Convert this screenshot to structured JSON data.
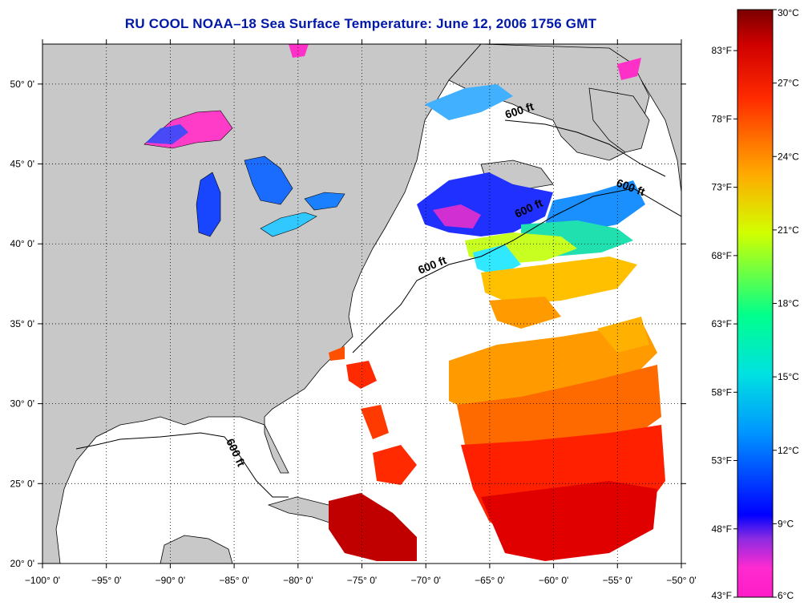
{
  "title": "RU COOL  NOAA–18  Sea Surface Temperature:  June 12, 2006 1756 GMT",
  "map": {
    "lon_range": [
      -100,
      -50
    ],
    "lat_range": [
      20,
      52.5
    ],
    "x_ticks": [
      "−100° 0'",
      "−95° 0'",
      "−90° 0'",
      "−85° 0'",
      "−80° 0'",
      "−75° 0'",
      "−70° 0'",
      "−65° 0'",
      "−60° 0'",
      "−55° 0'",
      "−50° 0'"
    ],
    "y_ticks": [
      "50° 0'",
      "45° 0'",
      "40° 0'",
      "35° 0'",
      "30° 0'",
      "25° 0'",
      "20° 0'"
    ],
    "grid": "dotted",
    "land_color": "#c8c8c8",
    "ocean_color": "#ffffff",
    "contour_labels": [
      "600 ft",
      "600 ft",
      "600 ft",
      "600 ft",
      "600 ft"
    ]
  },
  "colorbar": {
    "celsius": [
      {
        "label": "30°C",
        "value": 30
      },
      {
        "label": "27°C",
        "value": 27
      },
      {
        "label": "24°C",
        "value": 24
      },
      {
        "label": "21°C",
        "value": 21
      },
      {
        "label": "18°C",
        "value": 18
      },
      {
        "label": "15°C",
        "value": 15
      },
      {
        "label": "12°C",
        "value": 12
      },
      {
        "label": "9°C",
        "value": 9
      },
      {
        "label": "6°C",
        "value": 6
      }
    ],
    "fahrenheit": [
      {
        "label": "83°F",
        "value": 83
      },
      {
        "label": "78°F",
        "value": 78
      },
      {
        "label": "73°F",
        "value": 73
      },
      {
        "label": "68°F",
        "value": 68
      },
      {
        "label": "63°F",
        "value": 63
      },
      {
        "label": "58°F",
        "value": 58
      },
      {
        "label": "53°F",
        "value": 53
      },
      {
        "label": "48°F",
        "value": 48
      },
      {
        "label": "43°F",
        "value": 43
      }
    ],
    "range_c": [
      6,
      30
    ],
    "range_f": [
      43,
      86
    ],
    "stops": [
      "#ff1cc8",
      "#8a2be2",
      "#0000ff",
      "#0096ff",
      "#00e1e1",
      "#00ff8c",
      "#d2ff00",
      "#ffaa00",
      "#ff2a00",
      "#d00000",
      "#7a0000"
    ]
  }
}
